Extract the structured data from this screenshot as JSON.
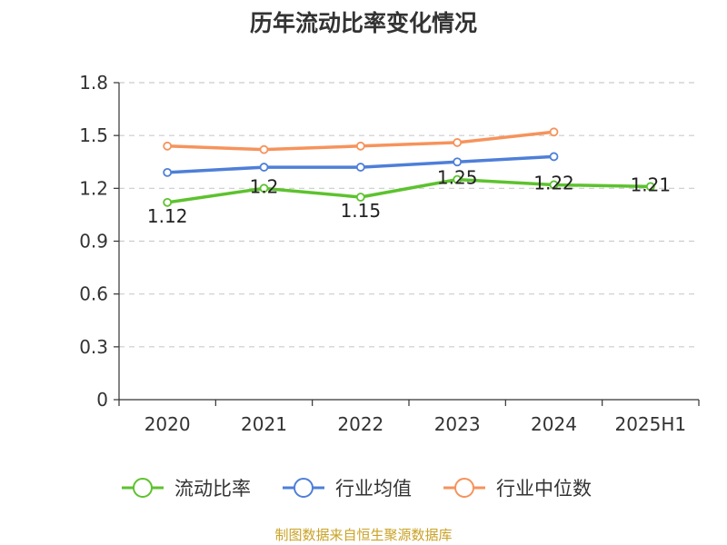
{
  "chart_data": {
    "type": "line",
    "title": "历年流动比率变化情况",
    "categories": [
      "2020",
      "2021",
      "2022",
      "2023",
      "2024",
      "2025H1"
    ],
    "ylim": [
      0,
      1.8
    ],
    "yticks": [
      "0",
      "0.3",
      "0.6",
      "0.9",
      "1.2",
      "1.5",
      "1.8"
    ],
    "grid": true,
    "legend_position": "bottom",
    "series": [
      {
        "name": "流动比率",
        "color": "#5dc22e",
        "values": [
          1.12,
          1.2,
          1.15,
          1.25,
          1.22,
          1.21
        ],
        "labels": [
          "1.12",
          "1.2",
          "1.15",
          "1.25",
          "1.22",
          "1.21"
        ]
      },
      {
        "name": "行业均值",
        "color": "#4e7fd8",
        "values": [
          1.29,
          1.32,
          1.32,
          1.35,
          1.38,
          null
        ]
      },
      {
        "name": "行业中位数",
        "color": "#f6935c",
        "values": [
          1.44,
          1.42,
          1.44,
          1.46,
          1.52,
          null
        ]
      }
    ]
  },
  "footer": {
    "source": "制图数据来自恒生聚源数据库"
  }
}
